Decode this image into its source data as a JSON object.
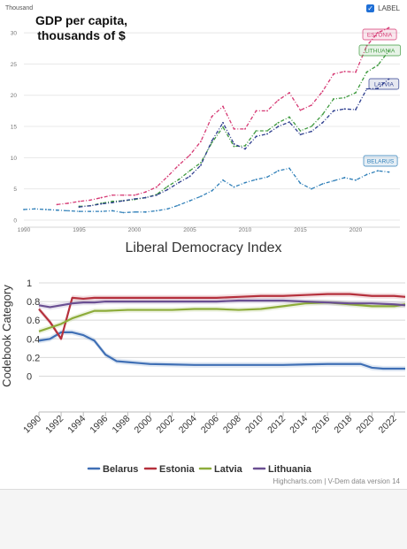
{
  "gdp_chart": {
    "unit_label": "Thousand",
    "title": "GDP per capita,\nthousands of $",
    "toggle_label": "LABEL",
    "chart_data": {
      "type": "line",
      "title": "GDP per capita, thousands of $",
      "ylabel": "Thousand",
      "xlim": [
        1990,
        2024
      ],
      "ylim": [
        0,
        31
      ],
      "y_ticks": [
        0,
        5,
        10,
        15,
        20,
        25,
        30
      ],
      "x_ticks": [
        1990,
        1995,
        2000,
        2005,
        2010,
        2015,
        2020
      ],
      "series": [
        {
          "name": "ESTONIA",
          "color": "#d63a74",
          "x": [
            1993,
            1994,
            1995,
            1996,
            1997,
            1998,
            1999,
            2000,
            2001,
            2002,
            2003,
            2004,
            2005,
            2006,
            2007,
            2008,
            2009,
            2010,
            2011,
            2012,
            2013,
            2014,
            2015,
            2016,
            2017,
            2018,
            2019,
            2020,
            2021,
            2022,
            2023
          ],
          "y": [
            2.5,
            2.7,
            3.0,
            3.2,
            3.6,
            4.0,
            4.0,
            4.0,
            4.5,
            5.3,
            7.0,
            8.8,
            10.4,
            12.6,
            16.6,
            18.2,
            14.6,
            14.6,
            17.5,
            17.5,
            19.2,
            20.4,
            17.6,
            18.4,
            20.6,
            23.4,
            23.8,
            23.7,
            27.9,
            30.0,
            30.8
          ]
        },
        {
          "name": "LITHUANIA",
          "color": "#3f9a3f",
          "x": [
            1995,
            1996,
            1997,
            1998,
            1999,
            2000,
            2001,
            2002,
            2003,
            2004,
            2005,
            2006,
            2007,
            2008,
            2009,
            2010,
            2011,
            2012,
            2013,
            2014,
            2015,
            2016,
            2017,
            2018,
            2019,
            2020,
            2021,
            2022,
            2023
          ],
          "y": [
            2.2,
            2.3,
            2.7,
            3.0,
            3.1,
            3.3,
            3.6,
            4.1,
            5.4,
            6.5,
            7.9,
            9.2,
            12.4,
            14.9,
            11.8,
            11.9,
            14.3,
            14.3,
            15.6,
            16.5,
            14.3,
            15.0,
            16.9,
            19.4,
            19.6,
            20.4,
            23.7,
            24.8,
            27.1
          ]
        },
        {
          "name": "LATVIA",
          "color": "#2f3f8f",
          "x": [
            1995,
            1996,
            1997,
            1998,
            1999,
            2000,
            2001,
            2002,
            2003,
            2004,
            2005,
            2006,
            2007,
            2008,
            2009,
            2010,
            2011,
            2012,
            2013,
            2014,
            2015,
            2016,
            2017,
            2018,
            2019,
            2020,
            2021,
            2022,
            2023
          ],
          "y": [
            2.1,
            2.3,
            2.6,
            2.8,
            3.1,
            3.4,
            3.6,
            4.0,
            4.9,
            6.0,
            7.0,
            8.8,
            12.7,
            15.6,
            12.2,
            11.4,
            13.4,
            13.8,
            15.0,
            15.7,
            13.7,
            14.2,
            15.6,
            17.5,
            17.8,
            17.7,
            21.0,
            21.1,
            22.6
          ]
        },
        {
          "name": "BELARUS",
          "color": "#2f7fb8",
          "x": [
            1990,
            1991,
            1992,
            1993,
            1994,
            1995,
            1996,
            1997,
            1998,
            1999,
            2000,
            2001,
            2002,
            2003,
            2004,
            2005,
            2006,
            2007,
            2008,
            2009,
            2010,
            2011,
            2012,
            2013,
            2014,
            2015,
            2016,
            2017,
            2018,
            2019,
            2020,
            2021,
            2022,
            2023
          ],
          "y": [
            1.7,
            1.8,
            1.7,
            1.6,
            1.5,
            1.4,
            1.4,
            1.4,
            1.5,
            1.2,
            1.3,
            1.3,
            1.5,
            1.8,
            2.4,
            3.1,
            3.8,
            4.7,
            6.4,
            5.3,
            6.0,
            6.5,
            6.9,
            7.9,
            8.3,
            5.9,
            5.0,
            5.8,
            6.3,
            6.8,
            6.4,
            7.3,
            7.9,
            7.7
          ]
        }
      ]
    }
  },
  "ldi_chart": {
    "title": "Liberal Democracy Index",
    "credit": "Highcharts.com | V-Dem data version 14",
    "chart_data": {
      "type": "line",
      "title": "Liberal Democracy Index",
      "ylabel": "Codebook Category",
      "xlim": [
        1990,
        2023
      ],
      "ylim": [
        -0.1,
        1.0
      ],
      "y_ticks": [
        0,
        0.2,
        0.4,
        0.6,
        0.8,
        1
      ],
      "y_tick_labels": [
        "0",
        "0.2",
        "0.4",
        "0.6",
        "0.8",
        "1"
      ],
      "x_ticks": [
        1990,
        1992,
        1994,
        1996,
        1998,
        2000,
        2002,
        2004,
        2006,
        2008,
        2010,
        2012,
        2014,
        2016,
        2018,
        2020,
        2022
      ],
      "legend_position": "bottom",
      "series": [
        {
          "name": "Belarus",
          "color": "#3f6fb5",
          "x": [
            1990,
            1991,
            1992,
            1993,
            1994,
            1995,
            1996,
            1997,
            1998,
            1999,
            2000,
            2002,
            2004,
            2006,
            2008,
            2010,
            2012,
            2014,
            2016,
            2018,
            2019,
            2020,
            2021,
            2022,
            2023
          ],
          "y": [
            0.38,
            0.4,
            0.47,
            0.47,
            0.44,
            0.38,
            0.23,
            0.16,
            0.15,
            0.14,
            0.13,
            0.125,
            0.12,
            0.12,
            0.12,
            0.12,
            0.12,
            0.125,
            0.13,
            0.13,
            0.13,
            0.09,
            0.08,
            0.08,
            0.08
          ]
        },
        {
          "name": "Estonia",
          "color": "#b5303c",
          "x": [
            1990,
            1991,
            1992,
            1993,
            1994,
            1995,
            1996,
            1998,
            2000,
            2002,
            2004,
            2006,
            2008,
            2010,
            2012,
            2014,
            2016,
            2018,
            2020,
            2022,
            2023
          ],
          "y": [
            0.72,
            0.58,
            0.4,
            0.84,
            0.83,
            0.84,
            0.84,
            0.84,
            0.84,
            0.84,
            0.84,
            0.84,
            0.85,
            0.86,
            0.86,
            0.87,
            0.88,
            0.88,
            0.86,
            0.86,
            0.85
          ]
        },
        {
          "name": "Latvia",
          "color": "#8dac3a",
          "x": [
            1990,
            1991,
            1992,
            1993,
            1994,
            1995,
            1996,
            1998,
            2000,
            2002,
            2004,
            2006,
            2008,
            2010,
            2012,
            2014,
            2016,
            2018,
            2020,
            2022,
            2023
          ],
          "y": [
            0.48,
            0.52,
            0.56,
            0.62,
            0.66,
            0.7,
            0.7,
            0.71,
            0.71,
            0.71,
            0.72,
            0.72,
            0.71,
            0.72,
            0.75,
            0.78,
            0.79,
            0.77,
            0.75,
            0.75,
            0.77
          ]
        },
        {
          "name": "Lithuania",
          "color": "#6a4f92",
          "x": [
            1990,
            1991,
            1992,
            1993,
            1994,
            1995,
            1996,
            1998,
            2000,
            2002,
            2004,
            2006,
            2008,
            2010,
            2012,
            2014,
            2016,
            2018,
            2020,
            2022,
            2023
          ],
          "y": [
            0.76,
            0.74,
            0.76,
            0.78,
            0.79,
            0.79,
            0.8,
            0.8,
            0.8,
            0.8,
            0.8,
            0.8,
            0.81,
            0.81,
            0.81,
            0.8,
            0.79,
            0.78,
            0.78,
            0.77,
            0.76
          ]
        }
      ]
    }
  }
}
